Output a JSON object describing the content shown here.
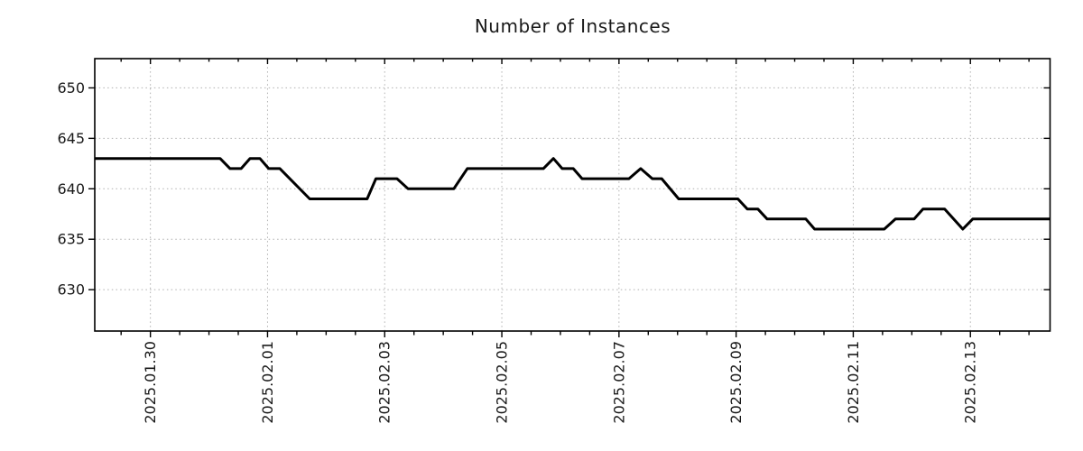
{
  "figure": {
    "title": "Number of Instances"
  },
  "chart_data": {
    "type": "line",
    "title": "Number of Instances",
    "xlabel": "",
    "ylabel": "",
    "legend": "none",
    "x_axis": {
      "kind": "date",
      "range_days": [
        -0.95,
        15.36
      ],
      "minor_tick_step_days": 0.5,
      "label_rotation_degrees": 90,
      "major_ticks": [
        {
          "day_offset": 0,
          "label": "2025.01.30"
        },
        {
          "day_offset": 2,
          "label": "2025.02.01"
        },
        {
          "day_offset": 4,
          "label": "2025.02.03"
        },
        {
          "day_offset": 6,
          "label": "2025.02.05"
        },
        {
          "day_offset": 8,
          "label": "2025.02.07"
        },
        {
          "day_offset": 10,
          "label": "2025.02.09"
        },
        {
          "day_offset": 12,
          "label": "2025.02.11"
        },
        {
          "day_offset": 14,
          "label": "2025.02.13"
        }
      ]
    },
    "y_axis": {
      "range": [
        625.9,
        652.9
      ],
      "major_ticks": [
        630,
        635,
        640,
        645,
        650
      ]
    },
    "grid": {
      "style": "dotted",
      "vertical": true,
      "horizontal": true
    },
    "series": [
      {
        "name": "number-of-instances",
        "color": "#000000",
        "line_width": 3,
        "points_day_value": [
          [
            -0.95,
            643
          ],
          [
            1.19,
            643
          ],
          [
            1.36,
            642
          ],
          [
            1.55,
            642
          ],
          [
            1.7,
            643
          ],
          [
            1.87,
            643
          ],
          [
            2.02,
            642
          ],
          [
            2.21,
            642
          ],
          [
            2.72,
            639
          ],
          [
            3.7,
            639
          ],
          [
            3.85,
            641
          ],
          [
            4.21,
            641
          ],
          [
            4.4,
            640
          ],
          [
            5.18,
            640
          ],
          [
            5.41,
            642
          ],
          [
            6.71,
            642
          ],
          [
            6.88,
            643
          ],
          [
            7.03,
            642
          ],
          [
            7.22,
            642
          ],
          [
            7.37,
            641
          ],
          [
            8.17,
            641
          ],
          [
            8.37,
            642
          ],
          [
            8.57,
            641
          ],
          [
            8.73,
            641
          ],
          [
            9.02,
            639
          ],
          [
            10.03,
            639
          ],
          [
            10.19,
            638
          ],
          [
            10.37,
            638
          ],
          [
            10.53,
            637
          ],
          [
            11.19,
            637
          ],
          [
            11.34,
            636
          ],
          [
            12.53,
            636
          ],
          [
            12.72,
            637
          ],
          [
            13.04,
            637
          ],
          [
            13.19,
            638
          ],
          [
            13.56,
            638
          ],
          [
            13.87,
            636
          ],
          [
            14.04,
            637
          ],
          [
            15.36,
            637
          ]
        ]
      }
    ],
    "style": {
      "line_color": "#000000",
      "grid_color": "#b0b0b0",
      "axis_color": "#000000",
      "text_color": "#1a1a1a",
      "background": "#ffffff",
      "tick_label_font_px": 16,
      "title_font_px": 20
    }
  }
}
